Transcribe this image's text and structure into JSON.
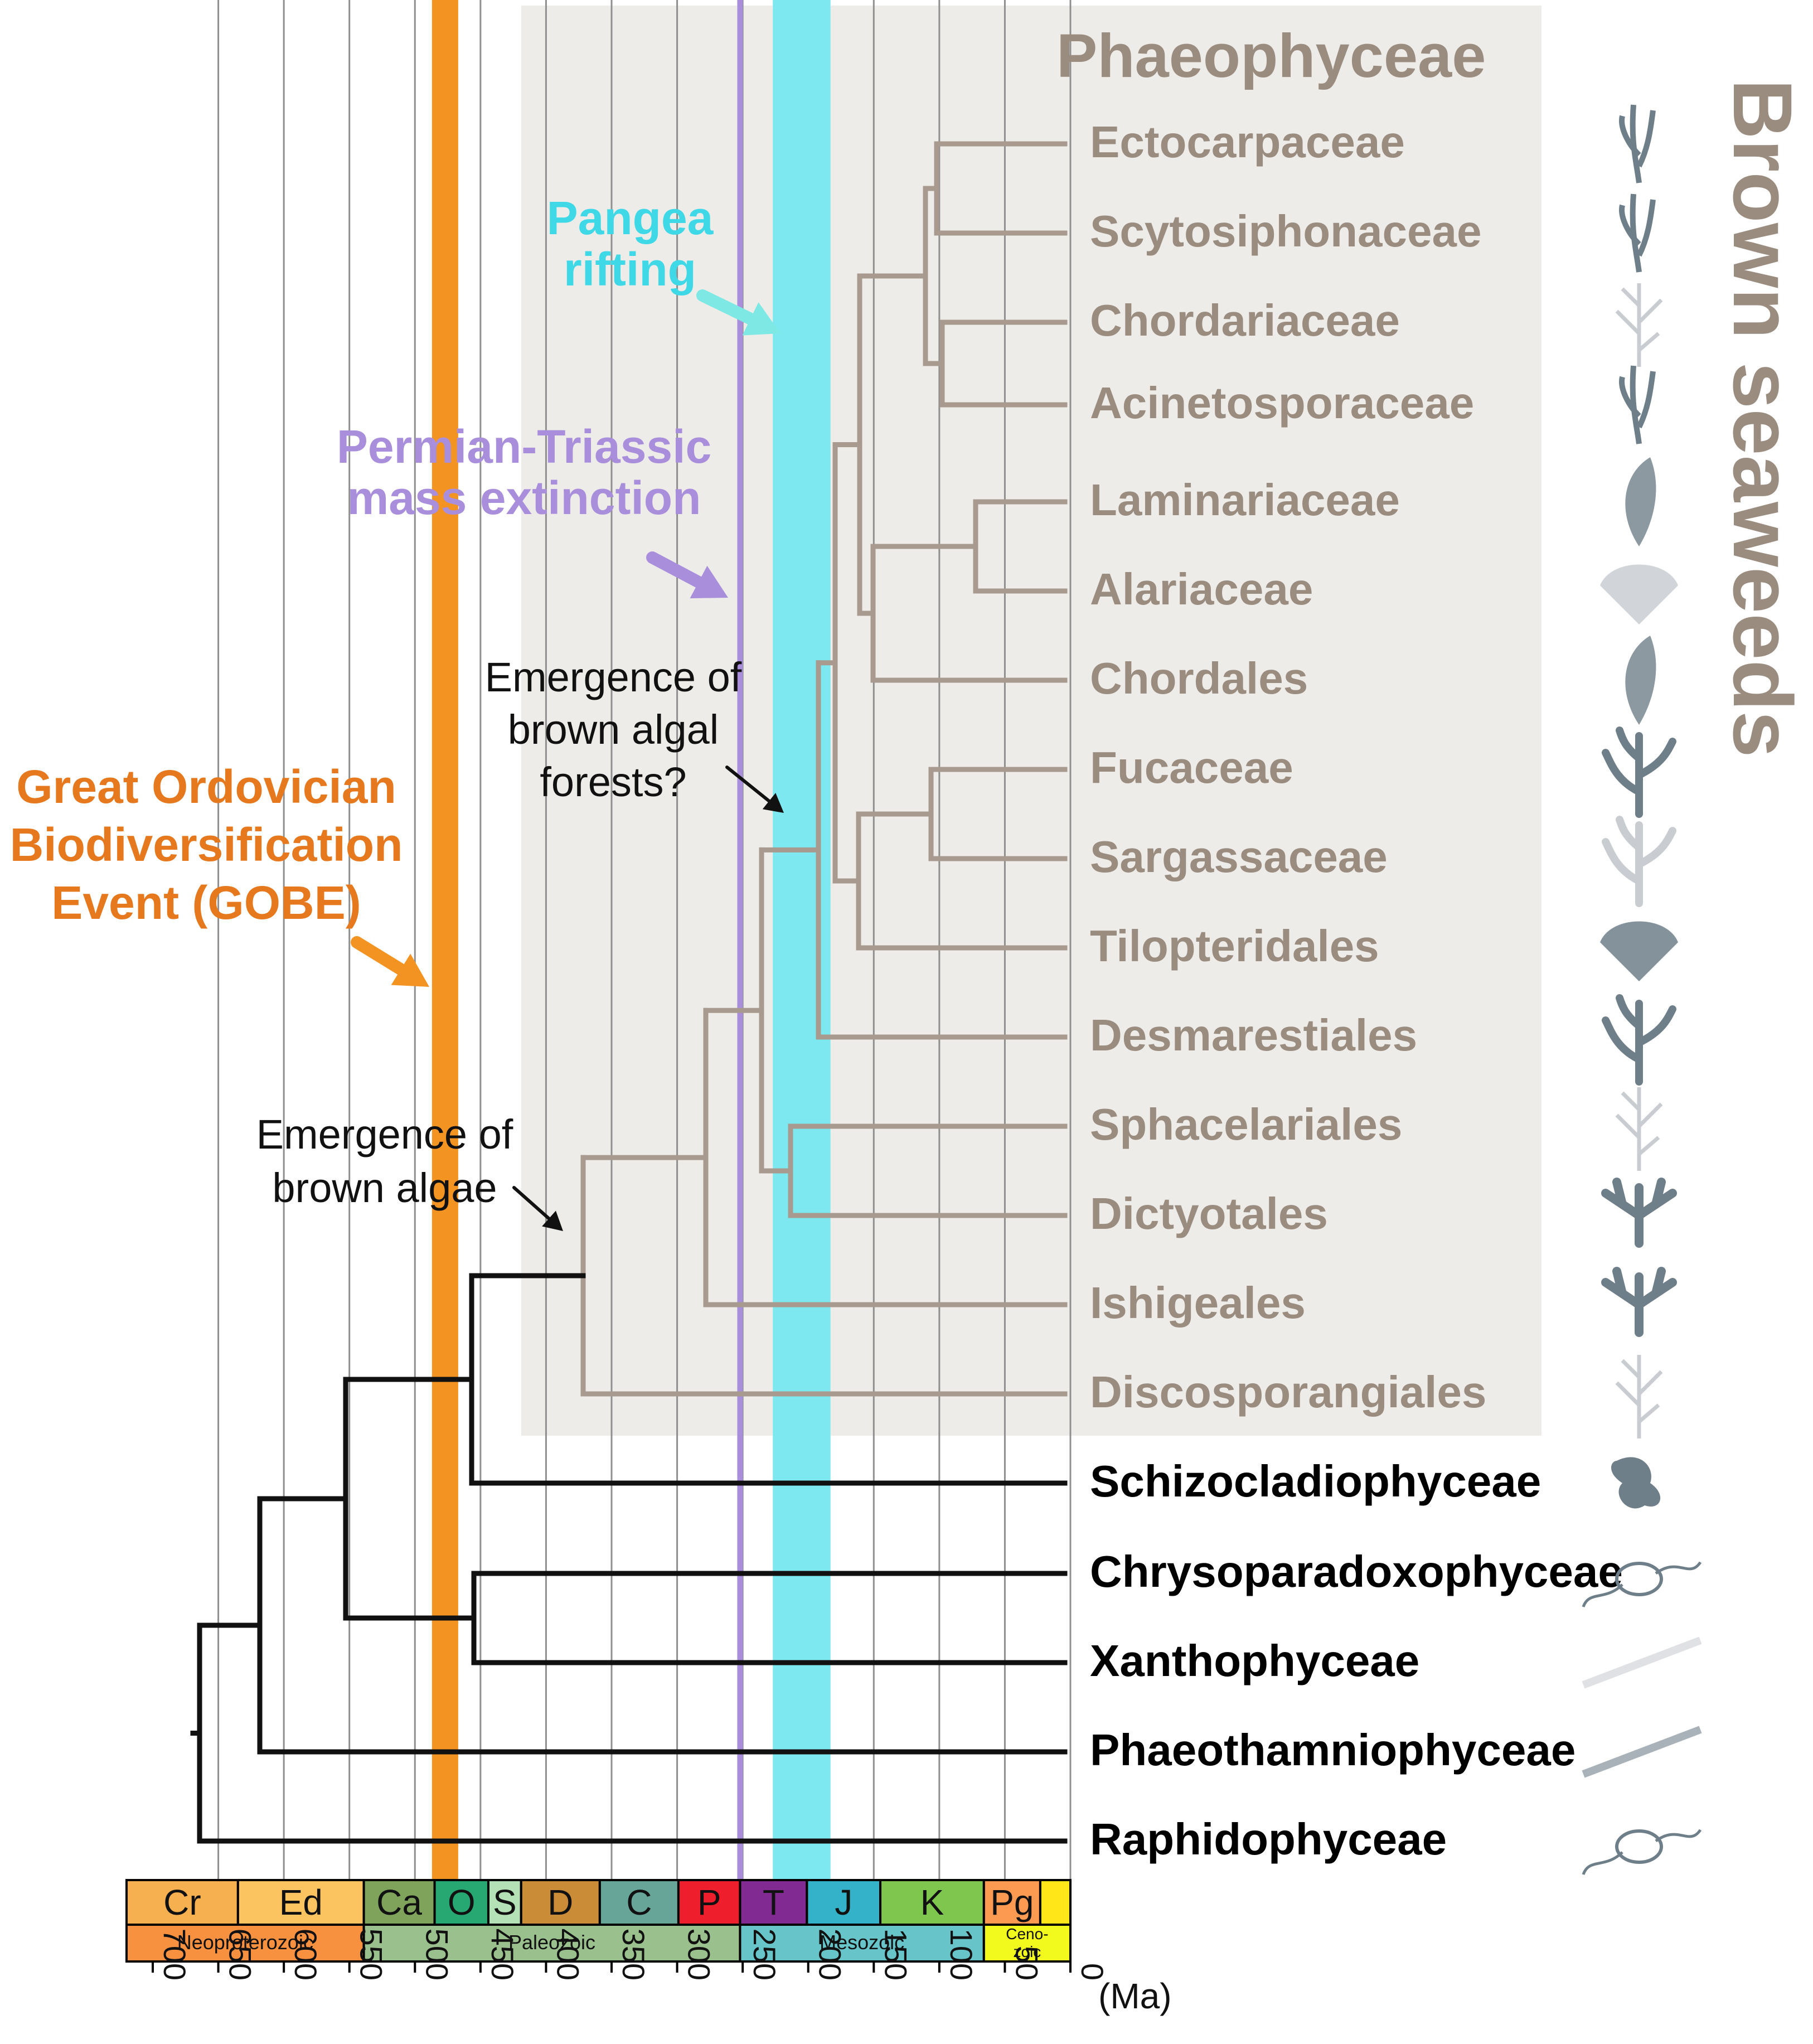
{
  "phaeophyceae_heading": "Phaeophyceae",
  "brown_seaweeds_label": "Brown seaweeds",
  "events": {
    "gobe": "Great Ordovician\nBiodiversification\nEvent (GOBE)",
    "permian": "Permian-Triassic\nmass extinction",
    "pangea": "Pangea\nrifting",
    "emergence_forests": "Emergence of\nbrown algal\nforests?",
    "emergence_algae": "Emergence of\nbrown algae"
  },
  "taxa": [
    {
      "id": "ectocarpaceae",
      "name": "Ectocarpaceae",
      "group": "brown"
    },
    {
      "id": "scytosiphonaceae",
      "name": "Scytosiphonaceae",
      "group": "brown"
    },
    {
      "id": "chordariaceae",
      "name": "Chordariaceae",
      "group": "brown"
    },
    {
      "id": "acinetosporaceae",
      "name": "Acinetosporaceae",
      "group": "brown"
    },
    {
      "id": "laminariaceae",
      "name": "Laminariaceae",
      "group": "brown"
    },
    {
      "id": "alariaceae",
      "name": "Alariaceae",
      "group": "brown"
    },
    {
      "id": "chordales",
      "name": "Chordales",
      "group": "brown"
    },
    {
      "id": "fucaceae",
      "name": "Fucaceae",
      "group": "brown"
    },
    {
      "id": "sargassaceae",
      "name": "Sargassaceae",
      "group": "brown"
    },
    {
      "id": "tilopteridales",
      "name": "Tilopteridales",
      "group": "brown"
    },
    {
      "id": "desmarestiales",
      "name": "Desmarestiales",
      "group": "brown"
    },
    {
      "id": "sphacelariales",
      "name": "Sphacelariales",
      "group": "brown"
    },
    {
      "id": "dictyotales",
      "name": "Dictyotales",
      "group": "brown"
    },
    {
      "id": "ishigeales",
      "name": "Ishigeales",
      "group": "brown"
    },
    {
      "id": "discosporangiales",
      "name": "Discosporangiales",
      "group": "brown"
    },
    {
      "id": "schizocladiophyceae",
      "name": "Schizocladiophyceae",
      "group": "outgroup"
    },
    {
      "id": "chrysoparadoxophyceae",
      "name": "Chrysoparadoxophyceae",
      "group": "outgroup"
    },
    {
      "id": "xanthophyceae",
      "name": "Xanthophyceae",
      "group": "outgroup"
    },
    {
      "id": "phaeothamniophyceae",
      "name": "Phaeothamniophyceae",
      "group": "outgroup"
    },
    {
      "id": "raphidophyceae",
      "name": "Raphidophyceae",
      "group": "outgroup"
    }
  ],
  "periods": [
    {
      "label": "Cr",
      "start": 720,
      "end": 635,
      "color": "#f7b04f"
    },
    {
      "label": "Ed",
      "start": 635,
      "end": 539,
      "color": "#fcc460"
    },
    {
      "label": "Ca",
      "start": 539,
      "end": 485,
      "color": "#7fa35b"
    },
    {
      "label": "O",
      "start": 485,
      "end": 444,
      "color": "#27a873"
    },
    {
      "label": "S",
      "start": 444,
      "end": 419,
      "color": "#b4e1b6"
    },
    {
      "label": "D",
      "start": 419,
      "end": 359,
      "color": "#cb8c37"
    },
    {
      "label": "C",
      "start": 359,
      "end": 299,
      "color": "#67a599"
    },
    {
      "label": "P",
      "start": 299,
      "end": 252,
      "color": "#ef1e2c"
    },
    {
      "label": "T",
      "start": 252,
      "end": 201,
      "color": "#812b92"
    },
    {
      "label": "J",
      "start": 201,
      "end": 145,
      "color": "#34b2c9"
    },
    {
      "label": "K",
      "start": 145,
      "end": 66,
      "color": "#7fc64e"
    },
    {
      "label": "Pg",
      "start": 66,
      "end": 23,
      "color": "#fd9a52"
    },
    {
      "label": "",
      "start": 23,
      "end": 0,
      "color": "#ffe619"
    }
  ],
  "eras": [
    {
      "label": "Neoproterozoic",
      "start": 720,
      "end": 539,
      "color": "#f7903f"
    },
    {
      "label": "Paleozoic",
      "start": 539,
      "end": 252,
      "color": "#99c08d"
    },
    {
      "label": "Mesozoic",
      "start": 252,
      "end": 66,
      "color": "#67c5ca"
    },
    {
      "label": "Ceno-\nzoic",
      "start": 66,
      "end": 0,
      "color": "#f2f91d"
    }
  ],
  "axis": {
    "ticks": [
      "700",
      "650",
      "600",
      "550",
      "500",
      "450",
      "400",
      "350",
      "300",
      "250",
      "200",
      "150",
      "100",
      "50",
      "0"
    ],
    "unit": "(Ma)"
  },
  "colors": {
    "brown_branch": "#a89a8e",
    "outgroup_branch": "#111111",
    "gobe": "#f39322",
    "permian": "#a98fdb",
    "pangea": "#7ee8f0",
    "shade": "#eeece8",
    "heading": "#9b8c80"
  }
}
